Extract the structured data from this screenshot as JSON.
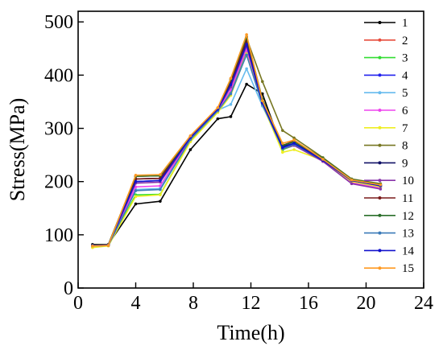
{
  "chart_data": {
    "type": "line",
    "title": "",
    "xlabel": "Time(h)",
    "ylabel": "Stress(MPa)",
    "xlim": [
      0,
      24
    ],
    "ylim": [
      0,
      520
    ],
    "xticks": [
      0,
      4,
      8,
      12,
      16,
      20,
      24
    ],
    "yticks": [
      0,
      100,
      200,
      300,
      400,
      500
    ],
    "grid": false,
    "legend_position": "right",
    "x": [
      1.0,
      2.1,
      4.0,
      5.7,
      7.8,
      9.7,
      10.6,
      11.7,
      12.8,
      14.2,
      15.0,
      17.0,
      19.0,
      21.0
    ],
    "series": [
      {
        "name": "1",
        "color": "#000000",
        "values": [
          82,
          82,
          158,
          163,
          260,
          318,
          322,
          383,
          365,
          260,
          270,
          240,
          200,
          190
        ]
      },
      {
        "name": "2",
        "color": "#e74c3c",
        "values": [
          79,
          80,
          210,
          211,
          285,
          338,
          385,
          470,
          350,
          268,
          276,
          240,
          202,
          193
        ]
      },
      {
        "name": "3",
        "color": "#33dd33",
        "values": [
          77,
          80,
          175,
          176,
          276,
          332,
          368,
          445,
          345,
          260,
          268,
          240,
          202,
          192
        ]
      },
      {
        "name": "4",
        "color": "#2222ee",
        "values": [
          80,
          81,
          200,
          202,
          283,
          336,
          382,
          455,
          348,
          264,
          272,
          240,
          202,
          192
        ]
      },
      {
        "name": "5",
        "color": "#66bbee",
        "values": [
          79,
          80,
          185,
          187,
          280,
          334,
          345,
          412,
          342,
          262,
          272,
          240,
          202,
          192
        ]
      },
      {
        "name": "6",
        "color": "#ee44ee",
        "values": [
          78,
          80,
          190,
          192,
          281,
          334,
          372,
          448,
          346,
          262,
          268,
          238,
          198,
          188
        ]
      },
      {
        "name": "7",
        "color": "#eeee22",
        "values": [
          76,
          79,
          172,
          175,
          275,
          330,
          362,
          440,
          345,
          255,
          260,
          240,
          200,
          190
        ]
      },
      {
        "name": "8",
        "color": "#777722",
        "values": [
          81,
          82,
          210,
          211,
          284,
          338,
          390,
          470,
          388,
          296,
          282,
          245,
          205,
          196
        ]
      },
      {
        "name": "9",
        "color": "#111166",
        "values": [
          80,
          81,
          205,
          206,
          284,
          337,
          386,
          462,
          350,
          266,
          272,
          240,
          202,
          193
        ]
      },
      {
        "name": "10",
        "color": "#8833aa",
        "values": [
          79,
          80,
          197,
          199,
          282,
          336,
          378,
          455,
          347,
          262,
          268,
          238,
          196,
          186
        ]
      },
      {
        "name": "11",
        "color": "#7a1a1a",
        "values": [
          80,
          81,
          205,
          206,
          284,
          337,
          386,
          466,
          352,
          268,
          276,
          240,
          202,
          193
        ]
      },
      {
        "name": "12",
        "color": "#2a6e2a",
        "values": [
          80,
          81,
          210,
          211,
          284,
          338,
          392,
          472,
          355,
          268,
          275,
          244,
          204,
          195
        ]
      },
      {
        "name": "13",
        "color": "#3a7ab8",
        "values": [
          79,
          80,
          183,
          185,
          279,
          333,
          365,
          438,
          345,
          262,
          270,
          240,
          202,
          192
        ]
      },
      {
        "name": "14",
        "color": "#1111cc",
        "values": [
          80,
          81,
          200,
          202,
          283,
          336,
          382,
          458,
          348,
          264,
          272,
          240,
          202,
          192
        ]
      },
      {
        "name": "15",
        "color": "#ff9922",
        "values": [
          79,
          80,
          212,
          213,
          286,
          339,
          394,
          476,
          352,
          272,
          278,
          242,
          203,
          194
        ]
      }
    ]
  }
}
